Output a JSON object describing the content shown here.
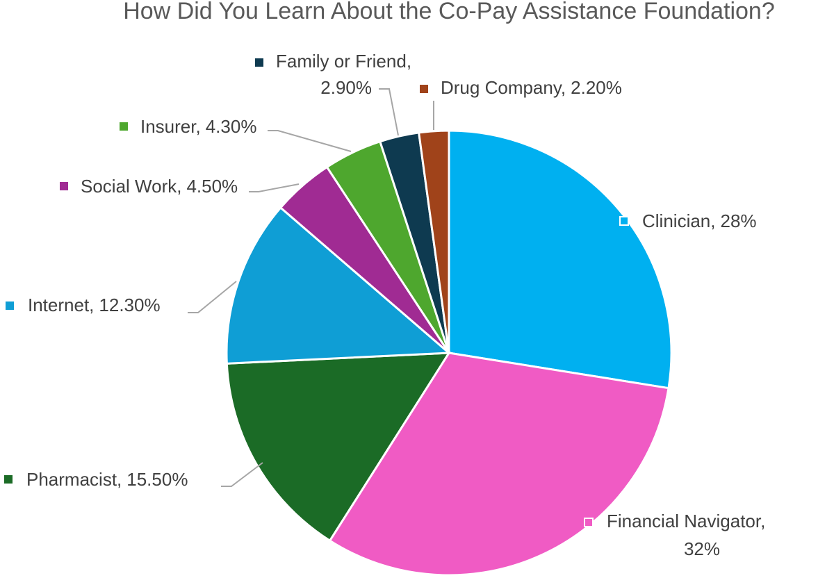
{
  "chart_data": {
    "type": "pie",
    "title": "How Did You Learn About the Co-Pay Assistance Foundation?",
    "categories": [
      "Clinician,",
      "Financial Navigator,",
      "Pharmacist,",
      "Internet,",
      "Social Work,",
      "Insurer,",
      "Family or Friend,",
      "Drug Company,"
    ],
    "values": [
      28,
      32,
      15.5,
      12.3,
      4.5,
      4.3,
      2.9,
      2.2
    ],
    "value_labels": [
      "28%",
      "32%",
      "15.50%",
      "12.30%",
      "4.50%",
      "4.30%",
      "2.90%",
      "2.20%"
    ],
    "colors": [
      "#00b0f0",
      "#f05bc4",
      "#1b6b26",
      "#0f9ed5",
      "#a02b93",
      "#4ea72e",
      "#0e3a50",
      "#a0431a"
    ]
  }
}
